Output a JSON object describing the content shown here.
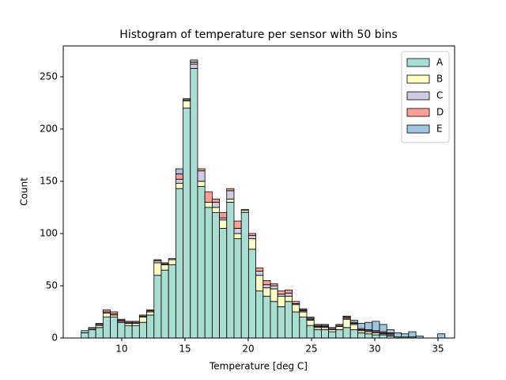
{
  "chart_data": {
    "type": "stacked_histogram",
    "title": "Histogram of temperature per sensor with 50 bins",
    "xlabel": "Temperature [deg C]",
    "ylabel": "Count",
    "bins": [
      6.8,
      7.375,
      7.95,
      8.525,
      9.1,
      9.675,
      10.25,
      10.825,
      11.4,
      11.975,
      12.55,
      13.125,
      13.7,
      14.275,
      14.85,
      15.425,
      16,
      16.575,
      17.15,
      17.725,
      18.3,
      18.875,
      19.45,
      20.025,
      20.6,
      21.175,
      21.75,
      22.325,
      22.9,
      23.475,
      24.05,
      24.625,
      25.2,
      25.775,
      26.35,
      26.925,
      27.5,
      28.075,
      28.65,
      29.225,
      29.8,
      30.375,
      30.95,
      31.525,
      32.1,
      32.675,
      33.25,
      33.825,
      34.4,
      34.975,
      35.55
    ],
    "series": [
      {
        "name": "A",
        "color": "#8dd3c7",
        "values": [
          5,
          8,
          10,
          20,
          20,
          15,
          12,
          12,
          15,
          22,
          60,
          65,
          70,
          143,
          220,
          258,
          145,
          125,
          120,
          105,
          130,
          95,
          120,
          85,
          45,
          40,
          35,
          30,
          35,
          25,
          20,
          12,
          8,
          8,
          6,
          8,
          10,
          8,
          5,
          4,
          3,
          3,
          2,
          1,
          1,
          1,
          0,
          0,
          0,
          0
        ]
      },
      {
        "name": "B",
        "color": "#ffffb3",
        "values": [
          0,
          1,
          2,
          4,
          2,
          1,
          2,
          2,
          5,
          3,
          12,
          5,
          5,
          5,
          7,
          0,
          5,
          5,
          5,
          8,
          3,
          5,
          2,
          10,
          15,
          8,
          12,
          10,
          5,
          7,
          5,
          5,
          2,
          2,
          2,
          3,
          8,
          5,
          2,
          2,
          2,
          1,
          1,
          0,
          0,
          0,
          0,
          0,
          0,
          0
        ]
      },
      {
        "name": "C",
        "color": "#bebada",
        "values": [
          0,
          0,
          1,
          1,
          1,
          1,
          1,
          1,
          1,
          1,
          2,
          1,
          1,
          4,
          1,
          4,
          10,
          0,
          5,
          2,
          8,
          5,
          1,
          3,
          4,
          3,
          3,
          2,
          3,
          1,
          1,
          1,
          1,
          1,
          1,
          1,
          1,
          1,
          1,
          1,
          1,
          1,
          1,
          0,
          0,
          0,
          0,
          0,
          0,
          0
        ]
      },
      {
        "name": "D",
        "color": "#fb8072",
        "values": [
          0,
          0,
          1,
          2,
          2,
          1,
          1,
          1,
          1,
          1,
          1,
          1,
          0,
          5,
          0,
          2,
          2,
          10,
          3,
          5,
          2,
          7,
          0,
          2,
          3,
          4,
          2,
          3,
          3,
          2,
          1,
          1,
          1,
          1,
          1,
          1,
          1,
          1,
          1,
          1,
          1,
          1,
          1,
          0,
          0,
          0,
          0,
          0,
          0,
          0
        ]
      },
      {
        "name": "E",
        "color": "#80b1d3",
        "values": [
          2,
          1,
          0,
          0,
          0,
          0,
          0,
          0,
          0,
          0,
          0,
          0,
          0,
          5,
          1,
          2,
          0,
          0,
          0,
          0,
          0,
          0,
          0,
          0,
          0,
          0,
          0,
          0,
          0,
          0,
          1,
          1,
          1,
          1,
          0,
          0,
          1,
          2,
          5,
          7,
          9,
          7,
          3,
          4,
          3,
          5,
          2,
          0,
          0,
          4
        ]
      }
    ],
    "xlim": [
      5.38,
      36.31
    ],
    "xticks": [
      10,
      15,
      20,
      25,
      30,
      35
    ],
    "ylim": [
      0,
      279.5
    ],
    "yticks": [
      0,
      50,
      100,
      150,
      200,
      250
    ],
    "legend": "upper right"
  }
}
